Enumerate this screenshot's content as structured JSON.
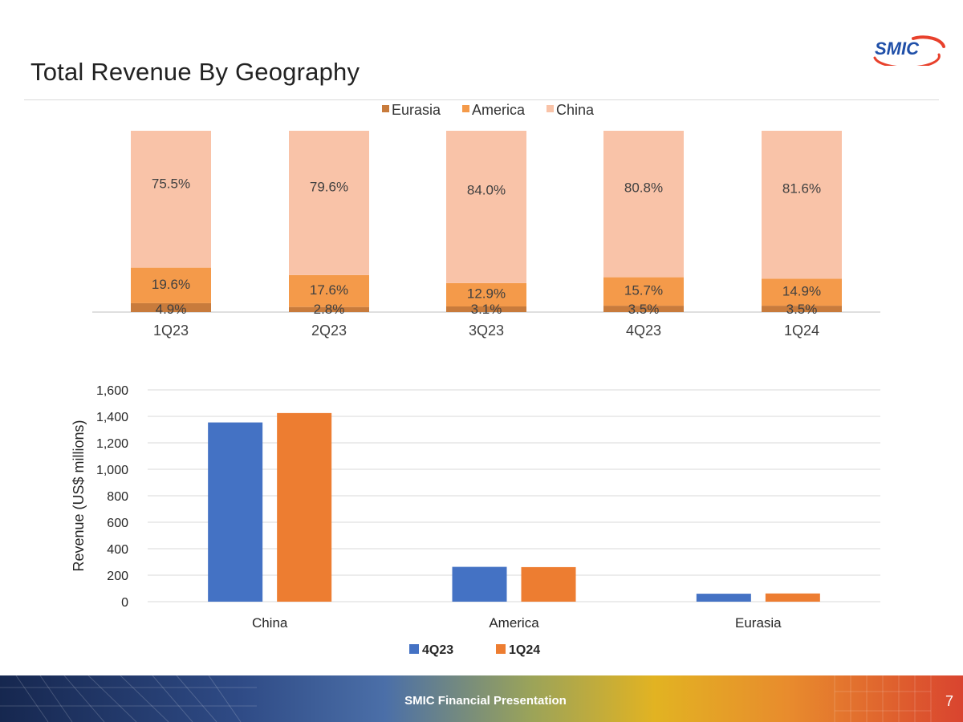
{
  "header": {
    "title": "Total Revenue By Geography",
    "logo_text": "SMIC"
  },
  "footer": {
    "text": "SMIC Financial Presentation",
    "page_number": "7"
  },
  "colors": {
    "eurasia": "#c87b3c",
    "america": "#f49a4a",
    "china": "#f9c3a8",
    "q4_23": "#4472c4",
    "q1_24": "#ed7d31"
  },
  "chart_data": [
    {
      "type": "bar",
      "stacked": true,
      "categories": [
        "1Q23",
        "2Q23",
        "3Q23",
        "4Q23",
        "1Q24"
      ],
      "series": [
        {
          "name": "Eurasia",
          "values": [
            4.9,
            2.8,
            3.1,
            3.5,
            3.5
          ],
          "labels": [
            "4.9%",
            "2.8%",
            "3.1%",
            "3.5%",
            "3.5%"
          ]
        },
        {
          "name": "America",
          "values": [
            19.6,
            17.6,
            12.9,
            15.7,
            14.9
          ],
          "labels": [
            "19.6%",
            "17.6%",
            "12.9%",
            "15.7%",
            "14.9%"
          ]
        },
        {
          "name": "China",
          "values": [
            75.5,
            79.6,
            84.0,
            80.8,
            81.6
          ],
          "labels": [
            "75.5%",
            "79.6%",
            "84.0%",
            "80.8%",
            "81.6%"
          ]
        }
      ],
      "legend": "top",
      "ylim": [
        0,
        100
      ]
    },
    {
      "type": "bar",
      "categories": [
        "China",
        "America",
        "Eurasia"
      ],
      "series": [
        {
          "name": "4Q23",
          "values": [
            1354,
            263,
            60
          ]
        },
        {
          "name": "1Q24",
          "values": [
            1425,
            261,
            62
          ]
        }
      ],
      "ylabel": "Revenue (US$  millions)",
      "ylim": [
        0,
        1600
      ],
      "yticks": [
        0,
        200,
        400,
        600,
        800,
        1000,
        1200,
        1400,
        1600
      ],
      "ytick_labels": [
        "0",
        "200",
        "400",
        "600",
        "800",
        "1,000",
        "1,200",
        "1,400",
        "1,600"
      ],
      "grid": true,
      "legend": "bottom"
    }
  ]
}
